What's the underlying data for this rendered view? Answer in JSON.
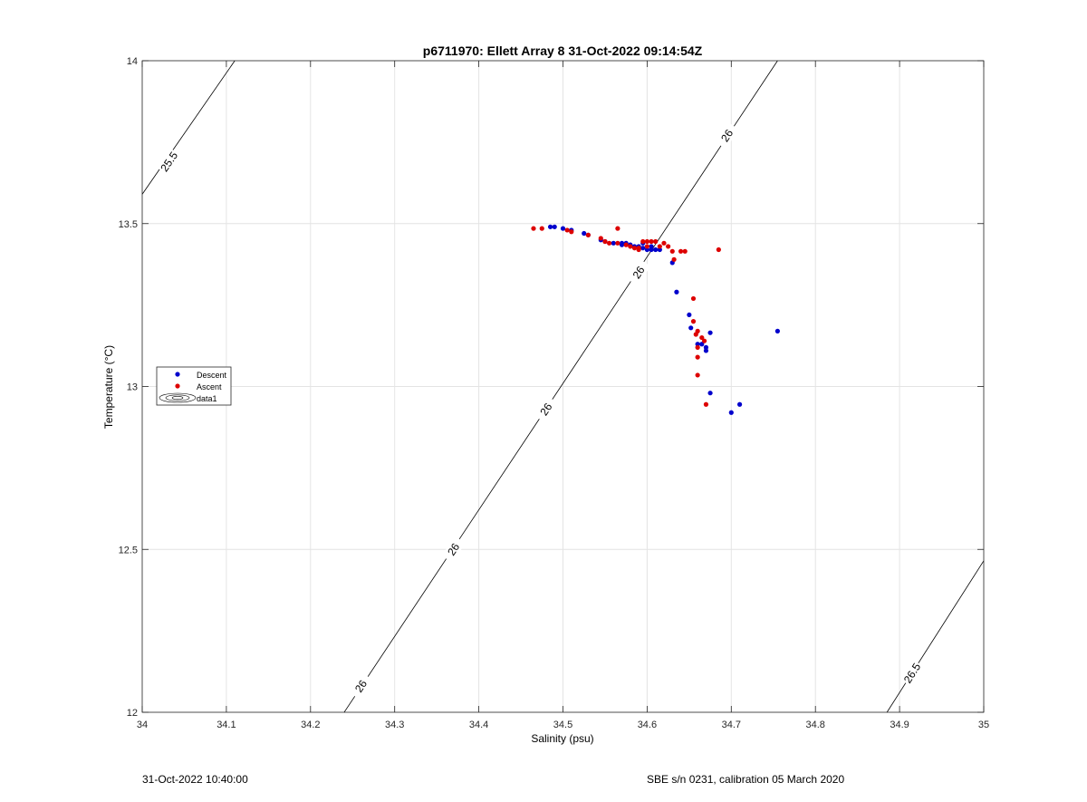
{
  "footer": {
    "left": "31-Oct-2022 10:40:00",
    "right": "SBE s/n 0231, calibration 05 March 2020"
  },
  "chart_data": {
    "type": "scatter",
    "title": "p6711970: Ellett Array 8 31-Oct-2022 09:14:54Z",
    "xlabel": "Salinity (psu)",
    "ylabel": "Temperature (°C)",
    "xlim": [
      34,
      35
    ],
    "ylim": [
      12,
      14
    ],
    "xticks": [
      34,
      34.1,
      34.2,
      34.3,
      34.4,
      34.5,
      34.6,
      34.7,
      34.8,
      34.9,
      35
    ],
    "xtick_labels": [
      "34",
      "34.1",
      "34.2",
      "34.3",
      "34.4",
      "34.5",
      "34.6",
      "34.7",
      "34.8",
      "34.9",
      "35"
    ],
    "yticks": [
      12,
      12.5,
      13,
      13.5,
      14
    ],
    "ytick_labels": [
      "12",
      "12.5",
      "13",
      "13.5",
      "14"
    ],
    "grid": true,
    "legend_position": "left",
    "legend": [
      "Descent",
      "Ascent",
      "data1"
    ],
    "colors": {
      "descent": "#0000cc",
      "ascent": "#dd0000",
      "contour": "#000000",
      "grid": "#e4e4e4"
    },
    "series": [
      {
        "name": "Descent",
        "points": [
          [
            34.485,
            13.49
          ],
          [
            34.49,
            13.49
          ],
          [
            34.5,
            13.485
          ],
          [
            34.51,
            13.48
          ],
          [
            34.525,
            13.47
          ],
          [
            34.53,
            13.465
          ],
          [
            34.545,
            13.45
          ],
          [
            34.55,
            13.445
          ],
          [
            34.56,
            13.44
          ],
          [
            34.57,
            13.44
          ],
          [
            34.575,
            13.44
          ],
          [
            34.58,
            13.435
          ],
          [
            34.585,
            13.43
          ],
          [
            34.59,
            13.43
          ],
          [
            34.595,
            13.425
          ],
          [
            34.6,
            13.42
          ],
          [
            34.605,
            13.42
          ],
          [
            34.61,
            13.42
          ],
          [
            34.615,
            13.42
          ],
          [
            34.63,
            13.38
          ],
          [
            34.635,
            13.29
          ],
          [
            34.65,
            13.22
          ],
          [
            34.652,
            13.18
          ],
          [
            34.66,
            13.13
          ],
          [
            34.665,
            13.13
          ],
          [
            34.67,
            13.12
          ],
          [
            34.67,
            13.11
          ],
          [
            34.675,
            13.165
          ],
          [
            34.675,
            12.98
          ],
          [
            34.7,
            12.92
          ],
          [
            34.71,
            12.945
          ],
          [
            34.755,
            13.17
          ],
          [
            34.595,
            13.44
          ],
          [
            34.605,
            13.43
          ],
          [
            34.57,
            13.435
          ]
        ]
      },
      {
        "name": "Ascent",
        "points": [
          [
            34.465,
            13.485
          ],
          [
            34.475,
            13.485
          ],
          [
            34.505,
            13.48
          ],
          [
            34.51,
            13.475
          ],
          [
            34.53,
            13.465
          ],
          [
            34.545,
            13.455
          ],
          [
            34.55,
            13.445
          ],
          [
            34.555,
            13.44
          ],
          [
            34.565,
            13.485
          ],
          [
            34.565,
            13.44
          ],
          [
            34.575,
            13.435
          ],
          [
            34.58,
            13.43
          ],
          [
            34.585,
            13.425
          ],
          [
            34.59,
            13.42
          ],
          [
            34.595,
            13.445
          ],
          [
            34.6,
            13.445
          ],
          [
            34.605,
            13.445
          ],
          [
            34.61,
            13.445
          ],
          [
            34.615,
            13.43
          ],
          [
            34.62,
            13.44
          ],
          [
            34.625,
            13.43
          ],
          [
            34.63,
            13.415
          ],
          [
            34.632,
            13.39
          ],
          [
            34.64,
            13.415
          ],
          [
            34.645,
            13.415
          ],
          [
            34.655,
            13.27
          ],
          [
            34.655,
            13.2
          ],
          [
            34.658,
            13.16
          ],
          [
            34.66,
            13.17
          ],
          [
            34.66,
            13.12
          ],
          [
            34.66,
            13.09
          ],
          [
            34.665,
            13.15
          ],
          [
            34.668,
            13.14
          ],
          [
            34.66,
            13.035
          ],
          [
            34.67,
            12.945
          ],
          [
            34.685,
            13.42
          ],
          [
            34.6,
            13.43
          ],
          [
            34.59,
            13.425
          ]
        ]
      }
    ],
    "contours": [
      {
        "level": 25.5,
        "label": "25.5",
        "from": [
          34.0,
          13.59
        ],
        "to": [
          34.11,
          14.0
        ],
        "labels_at": [
          [
            34.032,
            13.69
          ]
        ]
      },
      {
        "level": 26,
        "label": "26",
        "from": [
          34.24,
          12.0
        ],
        "to": [
          34.755,
          14.0
        ],
        "labels_at": [
          [
            34.26,
            12.08
          ],
          [
            34.37,
            12.5
          ],
          [
            34.48,
            12.93
          ],
          [
            34.59,
            13.35
          ],
          [
            34.695,
            13.77
          ]
        ]
      },
      {
        "level": 26.5,
        "label": "26.5",
        "from": [
          34.885,
          12.0
        ],
        "to": [
          35.0,
          12.465
        ],
        "labels_at": [
          [
            34.915,
            12.12
          ]
        ]
      }
    ]
  }
}
